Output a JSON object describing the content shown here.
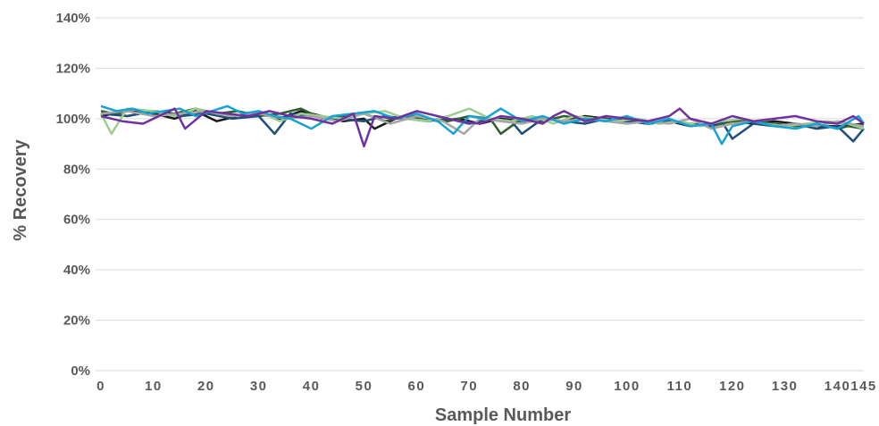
{
  "chart_data": {
    "type": "line",
    "title": "",
    "xlabel": "Sample Number",
    "ylabel": "% Recovery",
    "xlim": [
      0,
      145
    ],
    "ylim": [
      0,
      140
    ],
    "x_ticks": [
      0,
      10,
      20,
      30,
      40,
      50,
      60,
      70,
      80,
      90,
      100,
      110,
      120,
      130,
      140,
      145
    ],
    "x_tick_labels": [
      "0",
      "10",
      "20",
      "30",
      "40",
      "50",
      "60",
      "70",
      "80",
      "90",
      "100",
      "110",
      "120",
      "130",
      "140",
      "145"
    ],
    "y_ticks": [
      0,
      20,
      40,
      60,
      80,
      100,
      120,
      140
    ],
    "y_tick_labels": [
      "0%",
      "20%",
      "40%",
      "60%",
      "80%",
      "100%",
      "120%",
      "140%"
    ],
    "grid": "horizontal",
    "legend": "none",
    "colors": {
      "gridline": "#d9d9d9",
      "text": "#595959"
    },
    "series": [
      {
        "color": "#1a1a1a",
        "x": [
          0,
          5,
          10,
          14,
          18,
          22,
          26,
          30,
          34,
          38,
          42,
          46,
          50,
          52,
          56,
          60,
          64,
          68,
          72,
          76,
          80,
          84,
          88,
          92,
          96,
          100,
          104,
          108,
          112,
          116,
          120,
          124,
          128,
          132,
          136,
          140,
          145
        ],
        "values": [
          101,
          103,
          102,
          100,
          103,
          99,
          101,
          102,
          100,
          103,
          101,
          99,
          100,
          96,
          100,
          101,
          99,
          100,
          98,
          100,
          99,
          100,
          99,
          101,
          100,
          99,
          98,
          99,
          97,
          98,
          99,
          98,
          99,
          98,
          97,
          97,
          98
        ]
      },
      {
        "color": "#2e5e2e",
        "x": [
          0,
          5,
          10,
          14,
          18,
          22,
          26,
          30,
          34,
          38,
          42,
          46,
          50,
          54,
          58,
          62,
          66,
          70,
          74,
          76,
          80,
          84,
          88,
          92,
          96,
          100,
          104,
          108,
          112,
          116,
          120,
          124,
          128,
          132,
          136,
          140,
          142,
          145
        ],
        "values": [
          103,
          101,
          103,
          102,
          104,
          102,
          103,
          101,
          102,
          104,
          100,
          101,
          102,
          99,
          101,
          100,
          99,
          101,
          100,
          94,
          100,
          99,
          101,
          100,
          99,
          100,
          98,
          99,
          98,
          97,
          99,
          99,
          98,
          97,
          98,
          96,
          97,
          96
        ]
      },
      {
        "color": "#1f4e79",
        "x": [
          0,
          5,
          10,
          15,
          20,
          25,
          30,
          33,
          36,
          40,
          45,
          50,
          54,
          58,
          62,
          66,
          70,
          74,
          78,
          80,
          84,
          88,
          92,
          96,
          100,
          104,
          108,
          112,
          116,
          118,
          120,
          124,
          128,
          132,
          136,
          140,
          143,
          145
        ],
        "values": [
          102,
          101,
          103,
          101,
          102,
          100,
          101,
          94,
          102,
          101,
          100,
          99,
          101,
          100,
          99,
          100,
          98,
          100,
          99,
          94,
          100,
          99,
          98,
          100,
          99,
          98,
          99,
          98,
          97,
          99,
          92,
          98,
          97,
          98,
          96,
          97,
          91,
          96
        ]
      },
      {
        "color": "#9bcf8f",
        "x": [
          0,
          2,
          5,
          10,
          14,
          18,
          22,
          26,
          30,
          34,
          38,
          42,
          46,
          50,
          54,
          58,
          62,
          66,
          70,
          74,
          78,
          82,
          86,
          90,
          94,
          98,
          102,
          106,
          110,
          114,
          118,
          122,
          126,
          130,
          134,
          138,
          142,
          145
        ],
        "values": [
          102,
          94,
          104,
          103,
          101,
          104,
          102,
          101,
          103,
          99,
          102,
          101,
          100,
          102,
          103,
          100,
          99,
          101,
          104,
          100,
          99,
          101,
          98,
          101,
          100,
          99,
          100,
          98,
          99,
          97,
          99,
          100,
          98,
          97,
          98,
          99,
          98,
          96
        ]
      },
      {
        "color": "#a6a6a6",
        "x": [
          0,
          5,
          10,
          15,
          20,
          25,
          30,
          35,
          40,
          45,
          50,
          55,
          60,
          65,
          69,
          72,
          76,
          80,
          84,
          88,
          92,
          96,
          100,
          104,
          108,
          112,
          116,
          120,
          124,
          128,
          132,
          136,
          140,
          145
        ],
        "values": [
          102,
          103,
          101,
          102,
          103,
          101,
          102,
          100,
          101,
          99,
          102,
          98,
          101,
          99,
          94,
          100,
          99,
          98,
          100,
          99,
          100,
          99,
          98,
          99,
          98,
          100,
          96,
          98,
          99,
          97,
          98,
          97,
          99,
          97
        ]
      },
      {
        "color": "#17a2d4",
        "x": [
          0,
          3,
          6,
          9,
          12,
          15,
          18,
          21,
          24,
          27,
          30,
          33,
          36,
          40,
          44,
          48,
          52,
          56,
          60,
          64,
          67,
          70,
          73,
          76,
          80,
          84,
          88,
          92,
          96,
          100,
          104,
          108,
          112,
          116,
          118,
          120,
          124,
          128,
          132,
          136,
          140,
          144,
          145
        ],
        "values": [
          105,
          103,
          104,
          102,
          103,
          104,
          101,
          103,
          105,
          102,
          103,
          101,
          100,
          96,
          101,
          102,
          103,
          100,
          102,
          99,
          94,
          101,
          100,
          104,
          99,
          101,
          98,
          100,
          99,
          101,
          98,
          100,
          97,
          98,
          90,
          97,
          99,
          97,
          96,
          98,
          96,
          101,
          98
        ]
      },
      {
        "color": "#7030a0",
        "x": [
          0,
          4,
          8,
          12,
          14,
          16,
          20,
          24,
          28,
          32,
          36,
          40,
          44,
          48,
          50,
          52,
          56,
          60,
          64,
          68,
          72,
          76,
          80,
          84,
          86,
          88,
          92,
          96,
          100,
          104,
          108,
          110,
          112,
          116,
          120,
          124,
          128,
          132,
          136,
          140,
          143,
          145
        ],
        "values": [
          101,
          99,
          98,
          102,
          104,
          96,
          103,
          102,
          101,
          103,
          101,
          100,
          98,
          102,
          89,
          101,
          100,
          103,
          101,
          99,
          98,
          101,
          100,
          98,
          101,
          103,
          99,
          101,
          100,
          99,
          101,
          104,
          100,
          98,
          101,
          99,
          100,
          101,
          99,
          98,
          101,
          98
        ]
      }
    ]
  }
}
